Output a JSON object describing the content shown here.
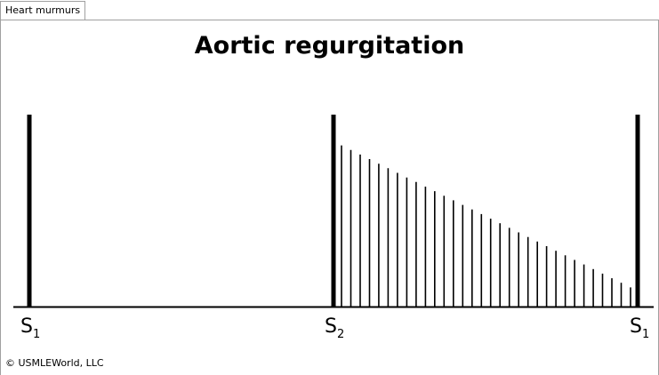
{
  "tab": {
    "label": "Heart murmurs"
  },
  "diagram": {
    "title": "Aortic regurgitation",
    "sounds": [
      {
        "symbol": "S",
        "subscript": "1"
      },
      {
        "symbol": "S",
        "subscript": "2"
      },
      {
        "symbol": "S",
        "subscript": "1"
      }
    ],
    "murmur": {
      "phase": "diastolic",
      "shape": "decrescendo",
      "line_count": 32,
      "start_level": 0.84,
      "end_level": 0.1
    },
    "colors": {
      "ink": "#000000",
      "background": "#ffffff"
    }
  },
  "footer": {
    "copyright": "© USMLEWorld, LLC"
  }
}
